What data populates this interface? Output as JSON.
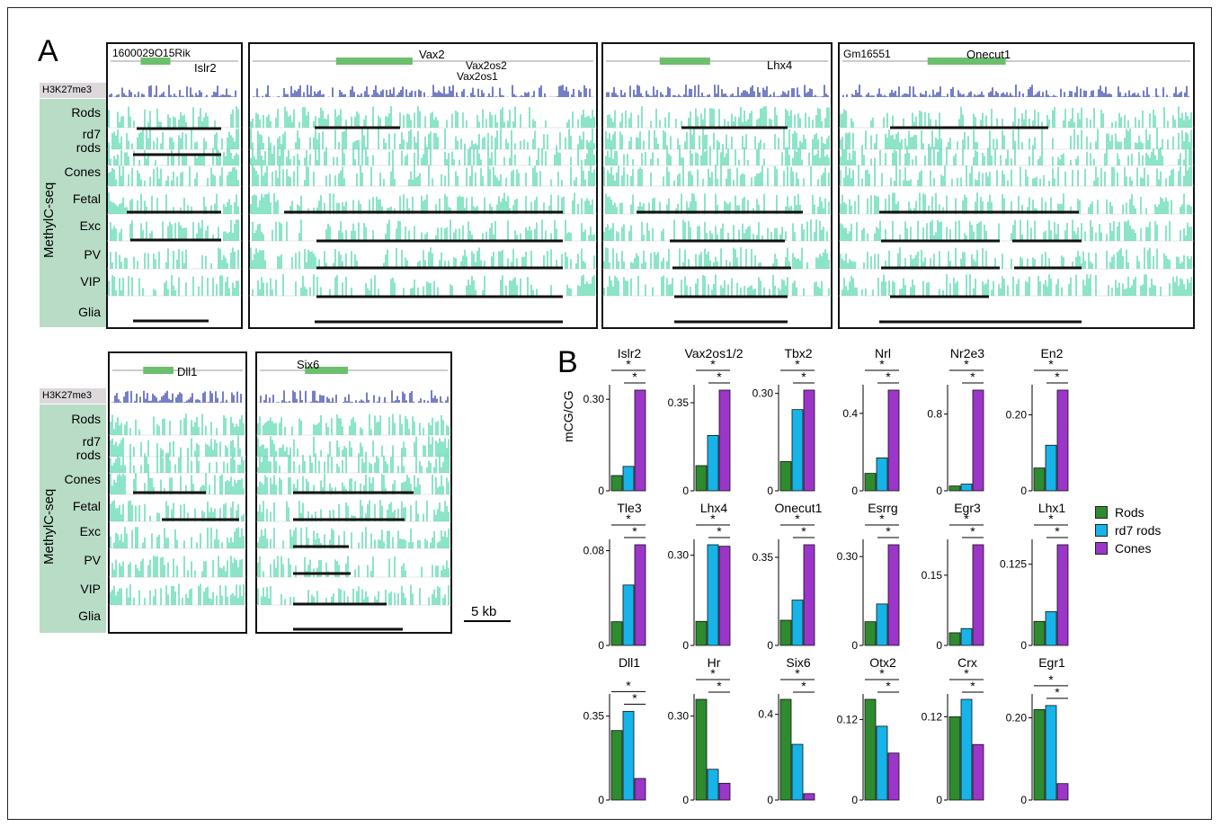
{
  "panel_a": {
    "letter": "A",
    "h3_label": "H3K27me3",
    "methyl_label": "MethylC-seq",
    "rows_top": [
      "Rods",
      "rd7 rods",
      "Cones",
      "Fetal",
      "Exc",
      "PV",
      "VIP",
      "Glia"
    ],
    "scale_label": "5 kb",
    "loci": [
      {
        "genes": [
          "1600029O15Rik",
          "Islr2"
        ]
      },
      {
        "genes": [
          "Vax2",
          "Vax2os2",
          "Vax2os1"
        ]
      },
      {
        "genes": [
          "Lhx4"
        ]
      },
      {
        "genes": [
          "Gm16551",
          "Onecut1"
        ]
      },
      {
        "genes": [
          "Dll1"
        ]
      },
      {
        "genes": [
          "Six6"
        ]
      }
    ]
  },
  "panel_b": {
    "letter": "B",
    "ylabel": "mCG/CG",
    "star": "*",
    "legend": [
      {
        "label": "Rods",
        "color": "#2e8b2e"
      },
      {
        "label": "rd7 rods",
        "color": "#16b4e8"
      },
      {
        "label": "Cones",
        "color": "#9b36c8"
      }
    ]
  },
  "chart_data": {
    "type": "bar",
    "series_names": [
      "Rods",
      "rd7 rods",
      "Cones"
    ],
    "panels": [
      {
        "gene": "Islr2",
        "tick": "0.30",
        "ymax": 0.33,
        "values": [
          0.05,
          0.08,
          0.33
        ]
      },
      {
        "gene": "Vax2os1/2",
        "tick": "0.35",
        "ymax": 0.4,
        "values": [
          0.1,
          0.22,
          0.4
        ]
      },
      {
        "gene": "Tbx2",
        "tick": "0.30",
        "ymax": 0.31,
        "values": [
          0.09,
          0.25,
          0.31
        ]
      },
      {
        "gene": "Nrl",
        "tick": "0.4",
        "ymax": 0.52,
        "values": [
          0.09,
          0.17,
          0.52
        ]
      },
      {
        "gene": "Nr2e3",
        "tick": "0.8",
        "ymax": 1.05,
        "values": [
          0.05,
          0.07,
          1.05
        ]
      },
      {
        "gene": "En2",
        "tick": "0.20",
        "ymax": 0.265,
        "values": [
          0.06,
          0.12,
          0.265
        ]
      },
      {
        "gene": "Tle3",
        "tick": "0.08",
        "ymax": 0.085,
        "values": [
          0.02,
          0.051,
          0.085
        ]
      },
      {
        "gene": "Lhx4",
        "tick": "0.30",
        "ymax": 0.335,
        "values": [
          0.08,
          0.335,
          0.33
        ]
      },
      {
        "gene": "Onecut1",
        "tick": "0.35",
        "ymax": 0.4,
        "values": [
          0.1,
          0.18,
          0.4
        ]
      },
      {
        "gene": "Esrrg",
        "tick": "0.30",
        "ymax": 0.34,
        "values": [
          0.08,
          0.14,
          0.34
        ]
      },
      {
        "gene": "Egr3",
        "tick": "0.15",
        "ymax": 0.215,
        "values": [
          0.027,
          0.036,
          0.215
        ]
      },
      {
        "gene": "Lhx1",
        "tick": "0.125",
        "ymax": 0.155,
        "values": [
          0.037,
          0.052,
          0.155
        ]
      },
      {
        "gene": "Dll1",
        "tick": "0.35",
        "ymax": 0.42,
        "values": [
          0.29,
          0.37,
          0.09
        ]
      },
      {
        "gene": "Hr",
        "tick": "0.30",
        "ymax": 0.36,
        "values": [
          0.36,
          0.11,
          0.06
        ]
      },
      {
        "gene": "Six6",
        "tick": "0.4",
        "ymax": 0.47,
        "values": [
          0.47,
          0.26,
          0.03
        ]
      },
      {
        "gene": "Otx2",
        "tick": "0.12",
        "ymax": 0.15,
        "values": [
          0.15,
          0.11,
          0.07
        ]
      },
      {
        "gene": "Crx",
        "tick": "0.12",
        "ymax": 0.145,
        "values": [
          0.12,
          0.145,
          0.08
        ]
      },
      {
        "gene": "Egr1",
        "tick": "0.20",
        "ymax": 0.245,
        "values": [
          0.22,
          0.23,
          0.04
        ]
      }
    ]
  }
}
